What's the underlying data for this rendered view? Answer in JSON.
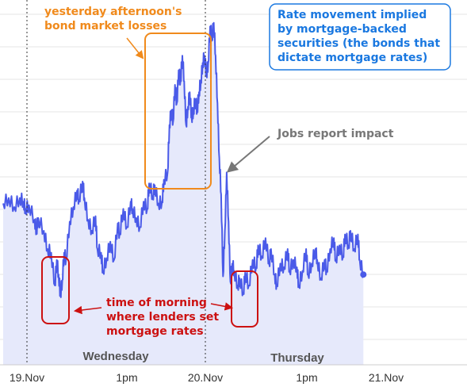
{
  "chart_data": {
    "type": "area",
    "title": "",
    "xlabel": "",
    "ylabel": "",
    "grid": true,
    "colors": {
      "line": "#4a5ae8",
      "fill": "#e6e9fb",
      "orange": "#f08a1c",
      "red": "#cc1111",
      "blue_box": "#1a78e0",
      "gray": "#777777"
    },
    "x_ticks": [
      "19.Nov",
      "1pm",
      "20.Nov",
      "1pm",
      "21.Nov"
    ],
    "day_labels": [
      "Wednesday",
      "Thursday"
    ],
    "series": [
      {
        "values": [
          [
            0,
            5
          ],
          [
            0.03,
            8
          ],
          [
            0.06,
            3
          ],
          [
            0.09,
            8
          ],
          [
            0.11,
            6
          ],
          [
            0.12,
            2
          ],
          [
            0.14,
            4
          ],
          [
            0.17,
            -4
          ],
          [
            0.18,
            -10
          ],
          [
            0.19,
            -3
          ],
          [
            0.22,
            -10
          ],
          [
            0.24,
            -20
          ],
          [
            0.26,
            -22
          ],
          [
            0.28,
            -40
          ],
          [
            0.29,
            -26
          ],
          [
            0.3,
            -34
          ],
          [
            0.31,
            -45
          ],
          [
            0.32,
            -37
          ],
          [
            0.33,
            -22
          ],
          [
            0.34,
            -26
          ],
          [
            0.36,
            -5
          ],
          [
            0.38,
            3
          ],
          [
            0.4,
            12
          ],
          [
            0.41,
            7
          ],
          [
            0.43,
            17
          ],
          [
            0.44,
            8
          ],
          [
            0.46,
            -4
          ],
          [
            0.48,
            -10
          ],
          [
            0.5,
            -2
          ],
          [
            0.51,
            -20
          ],
          [
            0.53,
            -22
          ],
          [
            0.54,
            -32
          ],
          [
            0.56,
            -25
          ],
          [
            0.58,
            -16
          ],
          [
            0.6,
            -26
          ],
          [
            0.62,
            -6
          ],
          [
            0.63,
            -12
          ],
          [
            0.65,
            2
          ],
          [
            0.67,
            -8
          ],
          [
            0.69,
            6
          ],
          [
            0.7,
            2
          ],
          [
            0.72,
            -3
          ],
          [
            0.74,
            -8
          ],
          [
            0.76,
            6
          ],
          [
            0.78,
            2
          ],
          [
            0.79,
            16
          ],
          [
            0.81,
            9
          ],
          [
            0.82,
            15
          ],
          [
            0.84,
            5
          ],
          [
            0.86,
            6
          ],
          [
            0.87,
            18
          ],
          [
            0.89,
            22
          ],
          [
            0.9,
            48
          ],
          [
            0.91,
            56
          ],
          [
            0.92,
            50
          ],
          [
            0.93,
            70
          ],
          [
            0.94,
            60
          ],
          [
            0.95,
            78
          ],
          [
            0.96,
            72
          ],
          [
            0.97,
            86
          ],
          [
            0.98,
            72
          ],
          [
            0.99,
            48
          ],
          [
            1,
            58
          ],
          [
            1.01,
            66
          ],
          [
            1.02,
            52
          ],
          [
            1.03,
            56
          ],
          [
            1.04,
            62
          ],
          [
            1.05,
            56
          ],
          [
            1.06,
            66
          ],
          [
            1.07,
            72
          ],
          [
            1.08,
            82
          ],
          [
            1.09,
            86
          ],
          [
            1.1,
            76
          ],
          [
            1.11,
            82
          ],
          [
            1.12,
            102
          ],
          [
            1.13,
            96
          ],
          [
            1.14,
            104
          ],
          [
            1.15,
            86
          ],
          [
            1.16,
            60
          ],
          [
            1.17,
            30
          ],
          [
            1.18,
            10
          ],
          [
            1.19,
            -35
          ],
          [
            1.2,
            -10
          ],
          [
            1.21,
            22
          ],
          [
            1.22,
            -5
          ],
          [
            1.23,
            -38
          ],
          [
            1.24,
            -28
          ],
          [
            1.25,
            -32
          ],
          [
            1.27,
            -40
          ],
          [
            1.28,
            -36
          ],
          [
            1.3,
            -44
          ],
          [
            1.31,
            -33
          ],
          [
            1.33,
            -40
          ],
          [
            1.35,
            -26
          ],
          [
            1.37,
            -30
          ],
          [
            1.38,
            -18
          ],
          [
            1.4,
            -24
          ],
          [
            1.42,
            -14
          ],
          [
            1.44,
            -28
          ],
          [
            1.45,
            -20
          ],
          [
            1.47,
            -34
          ],
          [
            1.48,
            -40
          ],
          [
            1.5,
            -28
          ],
          [
            1.52,
            -30
          ],
          [
            1.54,
            -20
          ],
          [
            1.55,
            -32
          ],
          [
            1.57,
            -26
          ],
          [
            1.59,
            -30
          ],
          [
            1.6,
            -40
          ],
          [
            1.62,
            -32
          ],
          [
            1.64,
            -20
          ],
          [
            1.65,
            -34
          ],
          [
            1.67,
            -28
          ],
          [
            1.69,
            -20
          ],
          [
            1.7,
            -26
          ],
          [
            1.72,
            -36
          ],
          [
            1.74,
            -26
          ],
          [
            1.75,
            -32
          ],
          [
            1.77,
            -20
          ],
          [
            1.79,
            -14
          ],
          [
            1.8,
            -26
          ],
          [
            1.82,
            -18
          ],
          [
            1.84,
            -24
          ],
          [
            1.85,
            -12
          ],
          [
            1.87,
            -18
          ],
          [
            1.88,
            -10
          ],
          [
            1.9,
            -20
          ],
          [
            1.92,
            -12
          ],
          [
            1.93,
            -26
          ],
          [
            1.95,
            -34
          ]
        ]
      }
    ],
    "annotations": {
      "orange_note": [
        "yesterday afternoon's",
        "bond market losses"
      ],
      "blue_note": [
        "Rate movement implied",
        "by mortgage-backed",
        "securities (the bonds that",
        "dictate mortgage rates)"
      ],
      "gray_note": "Jobs report impact",
      "red_note": [
        "time of morning",
        "where lenders set",
        "mortgage rates"
      ]
    }
  }
}
